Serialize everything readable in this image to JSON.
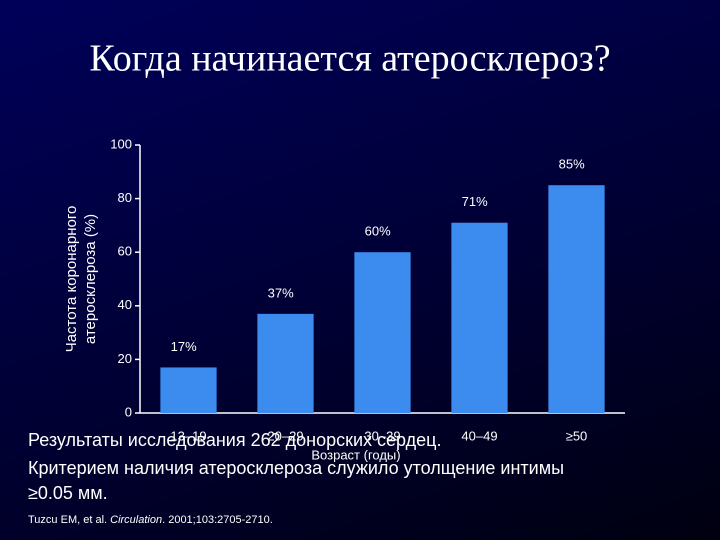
{
  "chart_data": {
    "type": "bar",
    "title": "Когда начинается атеросклероз?",
    "y_label": [
      "Частота коронарного",
      "атеросклероза (%)"
    ],
    "x_label": "Возраст (годы)",
    "categories": [
      "13–19",
      "20–29",
      "30–39",
      "40–49",
      "≥50"
    ],
    "values": [
      17,
      37,
      60,
      71,
      85
    ],
    "value_labels": [
      "17%",
      "37%",
      "60%",
      "71%",
      "85%"
    ],
    "color": "#3c8cf0",
    "ylim": [
      0,
      100
    ],
    "yticks": [
      0,
      20,
      40,
      60,
      80,
      100
    ]
  },
  "notes": [
    "Результаты исследования 262 донорских сердец.",
    "Критерием наличия атеросклероза служило утолщение интимы",
    "≥0.05 мм."
  ],
  "citation": [
    "Tuzcu EM, et al. ",
    "Circulation",
    ". 2001;103:2705-2710."
  ]
}
